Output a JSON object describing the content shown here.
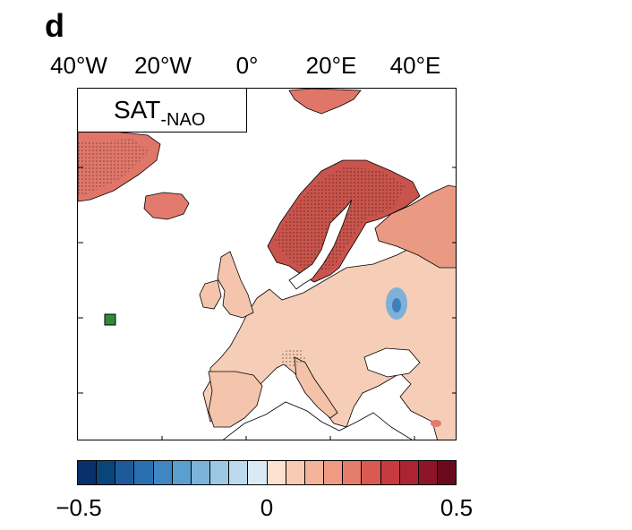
{
  "panel": {
    "letter": "d"
  },
  "title": {
    "main": "SAT",
    "sub": "-NAO"
  },
  "lon_labels": [
    "40°W",
    "20°W",
    "0°",
    "20°E",
    "40°E"
  ],
  "colorbar": {
    "min_label": "−0.5",
    "mid_label": "0",
    "max_label": "0.5",
    "colors": [
      "#08306b",
      "#08457a",
      "#1e5a9a",
      "#2c6fb0",
      "#3f86c2",
      "#5a9fd0",
      "#7bb3da",
      "#9cc8e4",
      "#bcdaee",
      "#d9eaf4",
      "#fce0d0",
      "#f9cbb5",
      "#f5b39b",
      "#ef9a82",
      "#e67c6a",
      "#d95a52",
      "#c63a40",
      "#ad2332",
      "#8e1427",
      "#6b0a1e"
    ]
  },
  "map": {
    "colors": {
      "warm_light": "#f6cdb6",
      "warm_medium": "#ee9c83",
      "warm_dark": "#d8655a",
      "cold_anomaly": "#7fb0d8",
      "marker_green": "#2e8b3a"
    }
  }
}
